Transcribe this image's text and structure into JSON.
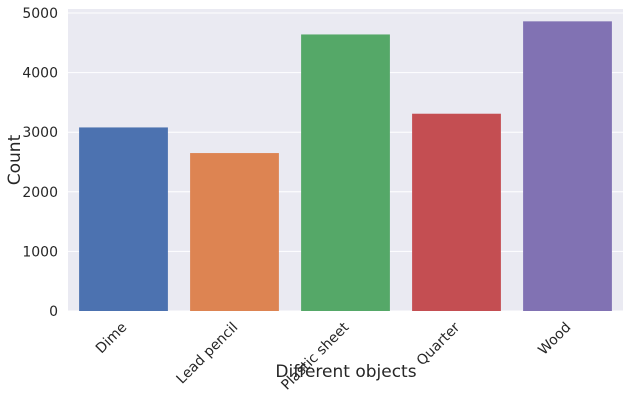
{
  "chart_data": {
    "type": "bar",
    "categories": [
      "Dime",
      "Lead pencil",
      "Plastic sheet",
      "Quarter",
      "Wood"
    ],
    "values": [
      3080,
      2650,
      4640,
      3310,
      4860
    ],
    "colors": [
      "#4c72b0",
      "#dd8452",
      "#55a868",
      "#c44e52",
      "#8172b3"
    ],
    "xlabel": "Different objects",
    "ylabel": "Count",
    "ylim": [
      0,
      5000
    ],
    "yticks": [
      0,
      1000,
      2000,
      3000,
      4000,
      5000
    ],
    "grid": true
  }
}
